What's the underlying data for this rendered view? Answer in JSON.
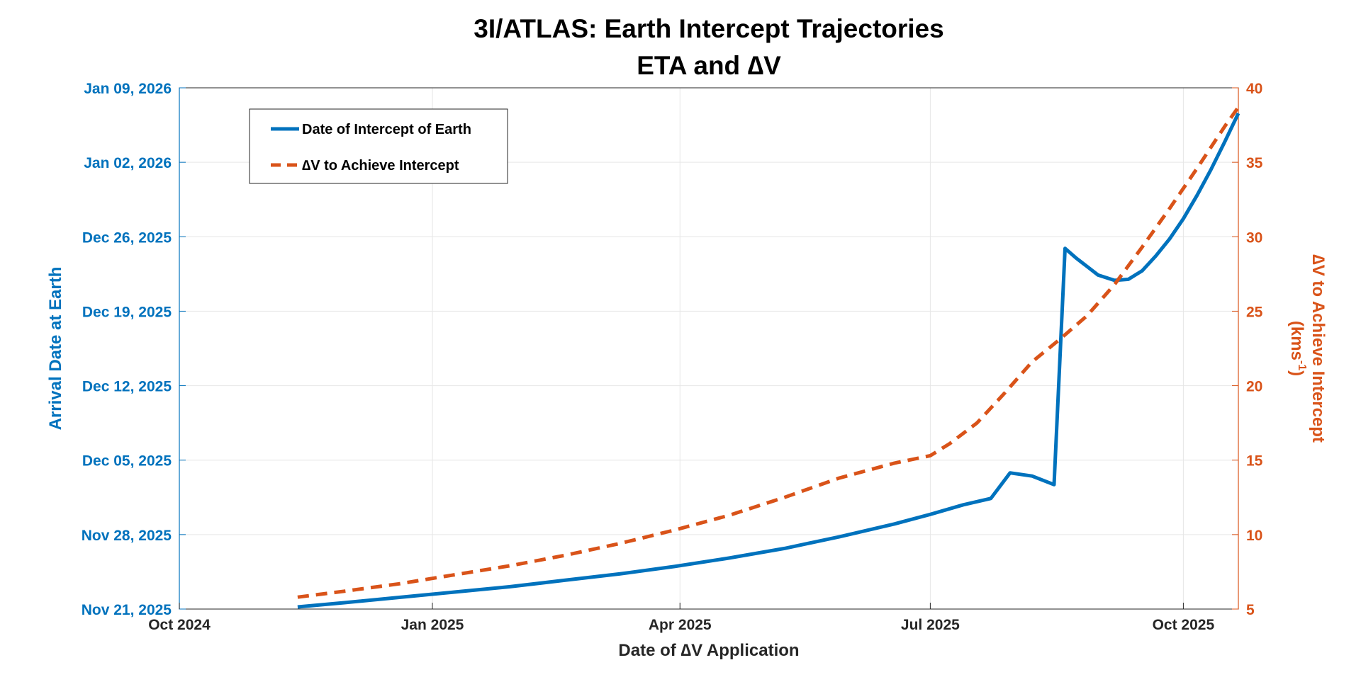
{
  "chart_data": {
    "type": "line",
    "title": "3I/ATLAS: Earth Intercept Trajectories",
    "subtitle": "ETA and ∆V",
    "xlabel": "Date of ∆V Application",
    "ylabel_left": "Arrival Date at Earth",
    "ylabel_right_line1": "∆V to Achieve Intercept",
    "ylabel_right_line2": "(kms",
    "ylabel_right_sup": "-1",
    "ylabel_right_close": ")",
    "x_ticks": [
      "Oct 2024",
      "Jan 2025",
      "Apr 2025",
      "Jul 2025",
      "Oct 2025"
    ],
    "x_tick_days": [
      0,
      92,
      182,
      273,
      365
    ],
    "xlim_days": [
      0,
      385
    ],
    "x_unit": "days since Oct 01, 2024",
    "y_left_ticks": [
      "Nov 21, 2025",
      "Nov 28, 2025",
      "Dec 05, 2025",
      "Dec 12, 2025",
      "Dec 19, 2025",
      "Dec 26, 2025",
      "Jan 02, 2026",
      "Jan 09, 2026"
    ],
    "y_left_tick_days": [
      0,
      7,
      14,
      21,
      28,
      35,
      42,
      49
    ],
    "ylim_left_days": [
      0,
      49
    ],
    "y_left_unit": "days since Nov 21, 2025",
    "y_right_ticks": [
      "5",
      "10",
      "15",
      "20",
      "25",
      "30",
      "35",
      "40"
    ],
    "y_right_tick_values": [
      5,
      10,
      15,
      20,
      25,
      30,
      35,
      40
    ],
    "ylim_right": [
      5,
      40
    ],
    "grid": true,
    "legend_position": "top-left",
    "series": [
      {
        "name": "Date of Intercept of Earth",
        "axis": "left",
        "color": "#0072BD",
        "style": "solid",
        "x": [
          43,
          60,
          80,
          100,
          120,
          140,
          160,
          180,
          200,
          220,
          240,
          260,
          273,
          285,
          295,
          302,
          310,
          318,
          322,
          326,
          330,
          334,
          340,
          345,
          350,
          355,
          360,
          365,
          370,
          375,
          380,
          385
        ],
        "y": [
          0.2,
          0.6,
          1.1,
          1.6,
          2.1,
          2.7,
          3.3,
          4.0,
          4.8,
          5.7,
          6.8,
          8.0,
          8.9,
          9.8,
          10.4,
          12.8,
          12.5,
          11.7,
          33.9,
          33.0,
          32.2,
          31.4,
          30.9,
          31.0,
          31.8,
          33.2,
          34.8,
          36.7,
          38.9,
          41.3,
          43.9,
          46.6
        ]
      },
      {
        "name": "∆V to Achieve Intercept",
        "axis": "right",
        "color": "#D95319",
        "style": "dashed",
        "x": [
          43,
          60,
          80,
          100,
          120,
          140,
          160,
          180,
          200,
          220,
          240,
          260,
          273,
          280,
          290,
          300,
          310,
          320,
          330,
          340,
          350,
          360,
          370,
          380,
          385
        ],
        "y": [
          5.8,
          6.2,
          6.7,
          7.3,
          7.9,
          8.6,
          9.4,
          10.3,
          11.3,
          12.5,
          13.8,
          14.8,
          15.3,
          16.1,
          17.5,
          19.5,
          21.6,
          23.1,
          24.7,
          26.8,
          29.3,
          31.9,
          34.6,
          37.4,
          38.7
        ]
      }
    ]
  }
}
